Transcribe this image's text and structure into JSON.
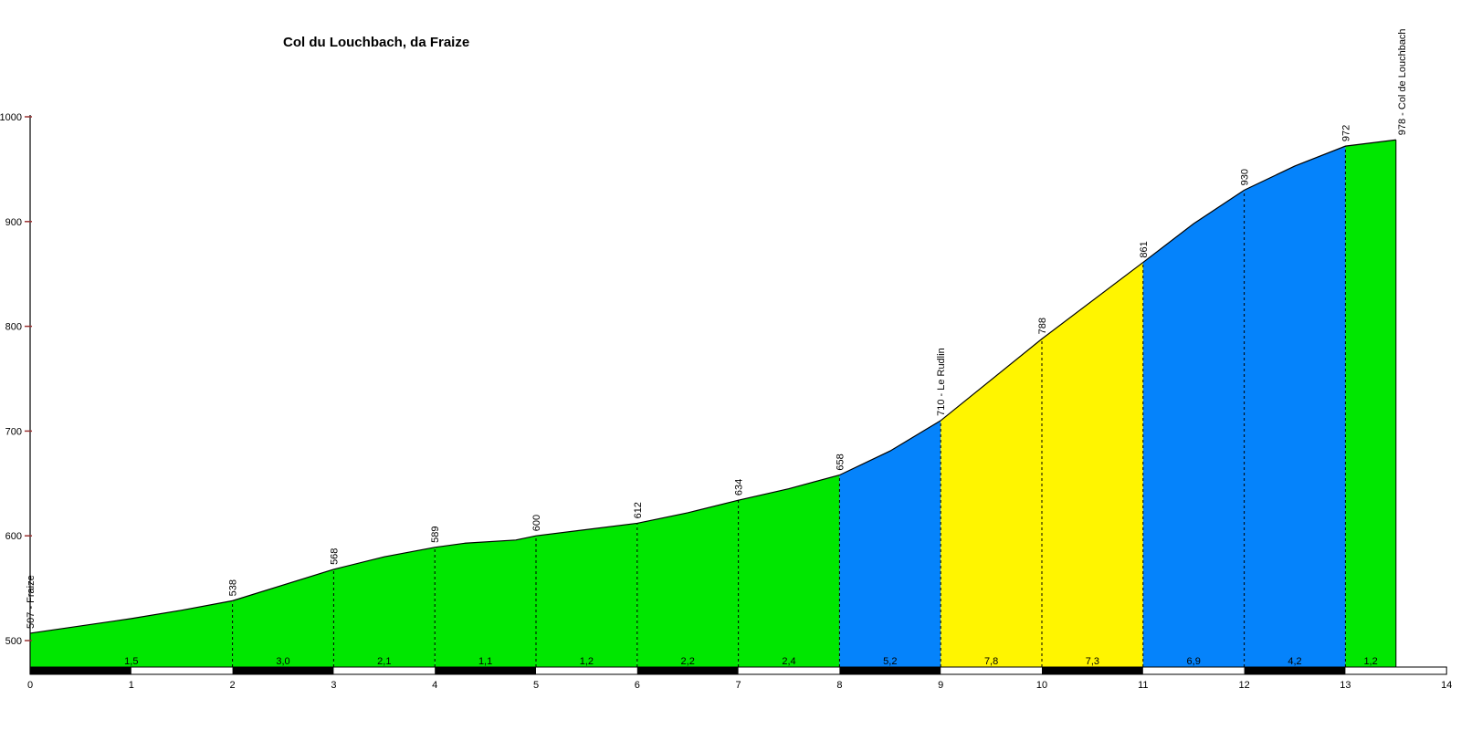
{
  "chart_data": {
    "type": "area",
    "title": "Col du Louchbach, da Fraize",
    "xlabel": "",
    "ylabel": "",
    "x_range": [
      0,
      14
    ],
    "y_range": [
      500,
      1000
    ],
    "x_ticks": [
      "0",
      "1",
      "2",
      "3",
      "4",
      "5",
      "6",
      "7",
      "8",
      "9",
      "10",
      "11",
      "12",
      "13",
      "14"
    ],
    "y_ticks": [
      "500",
      "600",
      "700",
      "800",
      "900",
      "1000"
    ],
    "grid": "off",
    "legend": "none",
    "profile_points": [
      {
        "km": 0,
        "ele": 507,
        "label": "507 - Fraize"
      },
      {
        "km": 1,
        "ele": 521
      },
      {
        "km": 1.5,
        "ele": 529
      },
      {
        "km": 2,
        "ele": 538,
        "label": "538"
      },
      {
        "km": 3,
        "ele": 568,
        "label": "568"
      },
      {
        "km": 3.5,
        "ele": 580
      },
      {
        "km": 4,
        "ele": 589,
        "label": "589"
      },
      {
        "km": 4.3,
        "ele": 593
      },
      {
        "km": 4.8,
        "ele": 596
      },
      {
        "km": 5,
        "ele": 600,
        "label": "600"
      },
      {
        "km": 6,
        "ele": 612,
        "label": "612"
      },
      {
        "km": 6.5,
        "ele": 622
      },
      {
        "km": 7,
        "ele": 634,
        "label": "634"
      },
      {
        "km": 7.5,
        "ele": 645
      },
      {
        "km": 8,
        "ele": 658,
        "label": "658"
      },
      {
        "km": 8.5,
        "ele": 681
      },
      {
        "km": 9,
        "ele": 710,
        "label": "710 - Le Rudlin"
      },
      {
        "km": 10,
        "ele": 788,
        "label": "788"
      },
      {
        "km": 11,
        "ele": 861,
        "label": "861"
      },
      {
        "km": 11.5,
        "ele": 898
      },
      {
        "km": 12,
        "ele": 930,
        "label": "930"
      },
      {
        "km": 12.5,
        "ele": 953
      },
      {
        "km": 13,
        "ele": 972,
        "label": "972"
      },
      {
        "km": 13.5,
        "ele": 978,
        "label": "978 - Col de Louchbach",
        "end": true
      }
    ],
    "segments": [
      {
        "from": 0,
        "to": 2,
        "gradient": "1,5",
        "color": "green"
      },
      {
        "from": 2,
        "to": 3,
        "gradient": "3,0",
        "color": "green"
      },
      {
        "from": 3,
        "to": 4,
        "gradient": "2,1",
        "color": "green"
      },
      {
        "from": 4,
        "to": 5,
        "gradient": "1,1",
        "color": "green"
      },
      {
        "from": 5,
        "to": 6,
        "gradient": "1,2",
        "color": "green"
      },
      {
        "from": 6,
        "to": 7,
        "gradient": "2,2",
        "color": "green"
      },
      {
        "from": 7,
        "to": 8,
        "gradient": "2,4",
        "color": "green"
      },
      {
        "from": 8,
        "to": 9,
        "gradient": "5,2",
        "color": "blue"
      },
      {
        "from": 9,
        "to": 10,
        "gradient": "7,8",
        "color": "yellow"
      },
      {
        "from": 10,
        "to": 11,
        "gradient": "7,3",
        "color": "yellow"
      },
      {
        "from": 11,
        "to": 12,
        "gradient": "6,9",
        "color": "blue"
      },
      {
        "from": 12,
        "to": 13,
        "gradient": "4,2",
        "color": "blue"
      },
      {
        "from": 13,
        "to": 13.5,
        "gradient": "1,2",
        "color": "green"
      }
    ],
    "km_bar": {
      "extent": [
        0,
        14
      ],
      "dark_blocks": [
        [
          0,
          1
        ],
        [
          2,
          3
        ],
        [
          4,
          5
        ],
        [
          6,
          7
        ],
        [
          8,
          9
        ],
        [
          10,
          11
        ],
        [
          12,
          13
        ]
      ]
    },
    "colors": {
      "green": "#00E700",
      "blue": "#0583FB",
      "yellow": "#FFF500",
      "line": "#000000",
      "tick": "#993333",
      "text": "#000000",
      "background": "#FFFFFF",
      "bar_dark": "#000000",
      "bar_light": "#FFFFFF"
    }
  }
}
